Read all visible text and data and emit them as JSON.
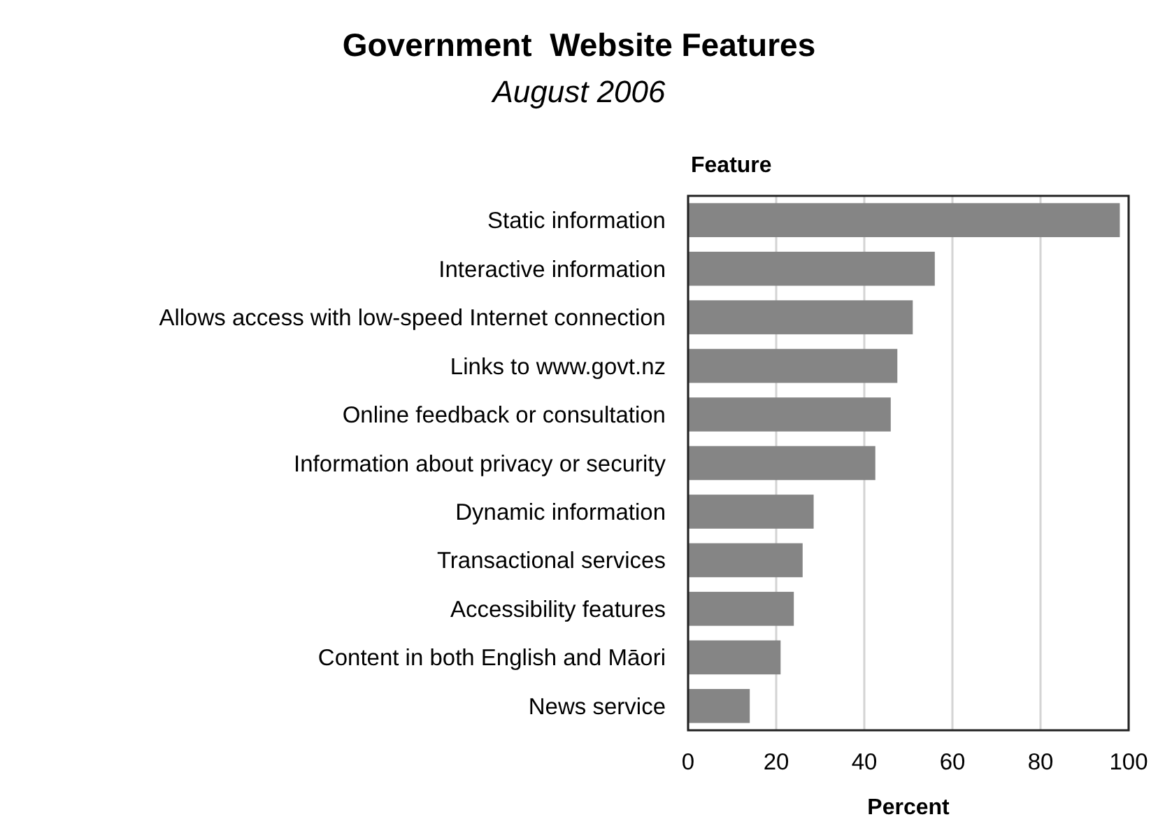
{
  "chart_data": {
    "type": "bar",
    "orientation": "horizontal",
    "title": "Government  Website Features",
    "subtitle": "August 2006",
    "xlabel": "Percent",
    "ylabel": "Feature",
    "categories": [
      "Static information",
      "Interactive information",
      "Allows access with low-speed Internet connection",
      "Links to www.govt.nz",
      "Online feedback or consultation",
      "Information about privacy or security",
      "Dynamic information",
      "Transactional services",
      "Accessibility features",
      "Content in both English and Māori",
      "News service"
    ],
    "values": [
      98,
      56,
      51,
      47.5,
      46,
      42.5,
      28.5,
      26,
      24,
      21,
      14
    ],
    "color": "#858585",
    "xlim": [
      0,
      100
    ],
    "xticks": [
      0,
      20,
      40,
      60,
      80,
      100
    ],
    "grid": "x"
  }
}
